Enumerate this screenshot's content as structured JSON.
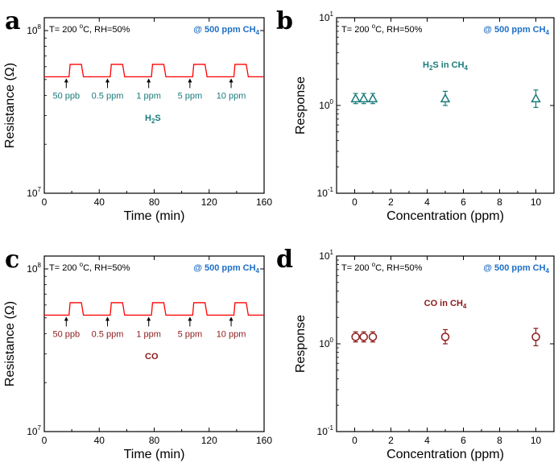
{
  "chart_data": [
    {
      "panel": "a",
      "type": "line",
      "xlabel": "Time (min)",
      "ylabel": "Resistance (Ω)",
      "xlim": [
        0,
        160
      ],
      "xticks": [
        "0",
        "40",
        "80",
        "120",
        "160"
      ],
      "yscale": "log",
      "ylim": [
        10000000,
        120000000
      ],
      "yticks": [
        {
          "value": 10000000,
          "base": "10",
          "exp": "7"
        },
        {
          "value": 100000000,
          "base": "10",
          "exp": "8"
        }
      ],
      "condition": {
        "prefix": "T= 200 ",
        "sup": "o",
        "suffix": "C, RH=50%"
      },
      "gas": {
        "main": "@ 500 ppm CH",
        "sub": "4"
      },
      "label": {
        "main": "H",
        "sub": "2",
        "rest": "S"
      },
      "color": "#ff0000",
      "text_color": "#1a7a7a",
      "baseline": 52000000,
      "plateau": 62000000,
      "pulses": [
        {
          "start": 18,
          "end": 27
        },
        {
          "start": 48,
          "end": 57
        },
        {
          "start": 78,
          "end": 87
        },
        {
          "start": 108,
          "end": 117
        },
        {
          "start": 138,
          "end": 147
        }
      ],
      "annotations": [
        {
          "text": "50 ppb",
          "x": 16
        },
        {
          "text": "0.5 ppm",
          "x": 46
        },
        {
          "text": "1 ppm",
          "x": 76
        },
        {
          "text": "5 ppm",
          "x": 106
        },
        {
          "text": "10 ppm",
          "x": 136
        }
      ]
    },
    {
      "panel": "b",
      "type": "scatter",
      "xlabel": "Concentration (ppm)",
      "ylabel": "Response",
      "xlim": [
        -1,
        11
      ],
      "xticks": [
        "0",
        "2",
        "4",
        "6",
        "8",
        "10"
      ],
      "yscale": "log",
      "ylim": [
        0.1,
        10
      ],
      "yticks": [
        {
          "value": 0.1,
          "base": "10",
          "exp": "-1"
        },
        {
          "value": 1,
          "base": "10",
          "exp": "0"
        },
        {
          "value": 10,
          "base": "10",
          "exp": "1"
        }
      ],
      "condition": {
        "prefix": "T= 200 ",
        "sup": "o",
        "suffix": "C, RH=50%"
      },
      "gas": {
        "main": "@ 500 ppm CH",
        "sub": "4"
      },
      "label": {
        "main": "H",
        "sub": "2",
        "rest": "S in CH",
        "sub2": "4"
      },
      "marker": "triangle",
      "color": "#1a7a7a",
      "points": [
        {
          "x": 0.05,
          "y": 1.2,
          "err_low": 1.05,
          "err_high": 1.37
        },
        {
          "x": 0.5,
          "y": 1.2,
          "err_low": 1.05,
          "err_high": 1.37
        },
        {
          "x": 1,
          "y": 1.2,
          "err_low": 1.05,
          "err_high": 1.37
        },
        {
          "x": 5,
          "y": 1.2,
          "err_low": 1.0,
          "err_high": 1.45
        },
        {
          "x": 10,
          "y": 1.2,
          "err_low": 0.95,
          "err_high": 1.5
        }
      ]
    },
    {
      "panel": "c",
      "type": "line",
      "xlabel": "Time (min)",
      "ylabel": "Resistance (Ω)",
      "xlim": [
        0,
        160
      ],
      "xticks": [
        "0",
        "40",
        "80",
        "120",
        "160"
      ],
      "yscale": "log",
      "ylim": [
        10000000,
        120000000
      ],
      "yticks": [
        {
          "value": 10000000,
          "base": "10",
          "exp": "7"
        },
        {
          "value": 100000000,
          "base": "10",
          "exp": "8"
        }
      ],
      "condition": {
        "prefix": "T= 200 ",
        "sup": "o",
        "suffix": "C, RH=50%"
      },
      "gas": {
        "main": "@ 500 ppm CH",
        "sub": "4"
      },
      "label": {
        "main": "CO"
      },
      "color": "#ff0000",
      "text_color": "#8b1a1a",
      "baseline": 52000000,
      "plateau": 62000000,
      "pulses": [
        {
          "start": 18,
          "end": 27
        },
        {
          "start": 48,
          "end": 57
        },
        {
          "start": 78,
          "end": 87
        },
        {
          "start": 108,
          "end": 117
        },
        {
          "start": 138,
          "end": 147
        }
      ],
      "annotations": [
        {
          "text": "50 ppb",
          "x": 16
        },
        {
          "text": "0.5 ppm",
          "x": 46
        },
        {
          "text": "1 ppm",
          "x": 76
        },
        {
          "text": "5 ppm",
          "x": 106
        },
        {
          "text": "10 ppm",
          "x": 136
        }
      ]
    },
    {
      "panel": "d",
      "type": "scatter",
      "xlabel": "Concentration (ppm)",
      "ylabel": "Response",
      "xlim": [
        -1,
        11
      ],
      "xticks": [
        "0",
        "2",
        "4",
        "6",
        "8",
        "10"
      ],
      "yscale": "log",
      "ylim": [
        0.1,
        10
      ],
      "yticks": [
        {
          "value": 0.1,
          "base": "10",
          "exp": "-1"
        },
        {
          "value": 1,
          "base": "10",
          "exp": "0"
        },
        {
          "value": 10,
          "base": "10",
          "exp": "1"
        }
      ],
      "condition": {
        "prefix": "T= 200 ",
        "sup": "o",
        "suffix": "C, RH=50%"
      },
      "gas": {
        "main": "@ 500 ppm CH",
        "sub": "4"
      },
      "label": {
        "main": "CO in CH",
        "sub": "4"
      },
      "marker": "circle",
      "color": "#8b1a1a",
      "points": [
        {
          "x": 0.05,
          "y": 1.2,
          "err_low": 1.05,
          "err_high": 1.37
        },
        {
          "x": 0.5,
          "y": 1.2,
          "err_low": 1.05,
          "err_high": 1.37
        },
        {
          "x": 1,
          "y": 1.2,
          "err_low": 1.05,
          "err_high": 1.37
        },
        {
          "x": 5,
          "y": 1.2,
          "err_low": 1.0,
          "err_high": 1.45
        },
        {
          "x": 10,
          "y": 1.2,
          "err_low": 0.95,
          "err_high": 1.5
        }
      ]
    }
  ]
}
